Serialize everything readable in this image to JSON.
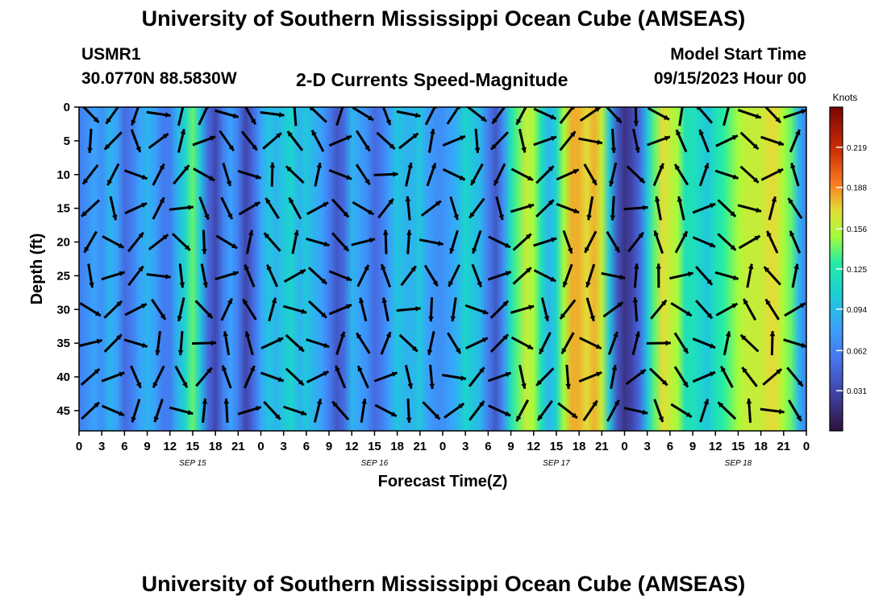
{
  "page": {
    "title": "University of Southern Mississippi Ocean Cube (AMSEAS)",
    "title_repeat": "University of Southern Mississippi Ocean Cube (AMSEAS)",
    "station": "USMR1",
    "coords": "30.0770N  88.5830W",
    "plot_title": "2-D Currents Speed-Magnitude",
    "model_label": "Model Start Time",
    "model_time": "09/15/2023 Hour 00"
  },
  "chart_data": {
    "type": "heatmap",
    "xlabel": "Forecast Time(Z)",
    "ylabel": "Depth (ft)",
    "x_ticks": [
      "0",
      "3",
      "6",
      "9",
      "12",
      "15",
      "18",
      "21",
      "0",
      "3",
      "6",
      "9",
      "12",
      "15",
      "18",
      "21",
      "0",
      "3",
      "6",
      "9",
      "12",
      "15",
      "18",
      "21",
      "0",
      "3",
      "6",
      "9",
      "12",
      "15",
      "18",
      "21",
      "0"
    ],
    "date_labels": [
      {
        "label": "SEP 15",
        "hour": 15
      },
      {
        "label": "SEP 16",
        "hour": 39
      },
      {
        "label": "SEP 17",
        "hour": 63
      },
      {
        "label": "SEP 18",
        "hour": 87
      }
    ],
    "y_ticks": [
      0,
      5,
      10,
      15,
      20,
      25,
      30,
      35,
      40,
      45
    ],
    "x_range_hours": [
      0,
      96
    ],
    "y_range_ft": [
      0,
      48
    ],
    "colorbar": {
      "unit": "Knots",
      "range": [
        0,
        0.25
      ],
      "ticks": [
        "0.031",
        "0.062",
        "0.094",
        "0.125",
        "0.156",
        "0.188",
        "0.219"
      ],
      "tick_values": [
        0.031,
        0.062,
        0.094,
        0.125,
        0.156,
        0.188,
        0.219
      ]
    },
    "speed_profile_hours": [
      0,
      1,
      2,
      3,
      4,
      5,
      6,
      7,
      8,
      9,
      10,
      11,
      12,
      13,
      14,
      15,
      16,
      17,
      18,
      19,
      20,
      21,
      22,
      23,
      24,
      25,
      26,
      27,
      28,
      29,
      30,
      31,
      32,
      33,
      34,
      35,
      36,
      37,
      38,
      39,
      40,
      41,
      42,
      43,
      44,
      45,
      46,
      47,
      48,
      49,
      50,
      51,
      52,
      53,
      54,
      55,
      56,
      57,
      58,
      59,
      60,
      61,
      62,
      63,
      64,
      65,
      66,
      67,
      68,
      69,
      70,
      71,
      72,
      73,
      74,
      75,
      76,
      77,
      78,
      79,
      80,
      81,
      82,
      83,
      84,
      85,
      86,
      87,
      88,
      89,
      90,
      91,
      92,
      93,
      94,
      95,
      96
    ],
    "speed_profile_knots": [
      0.06,
      0.07,
      0.08,
      0.07,
      0.09,
      0.08,
      0.05,
      0.06,
      0.08,
      0.09,
      0.08,
      0.06,
      0.06,
      0.09,
      0.11,
      0.14,
      0.1,
      0.05,
      0.03,
      0.06,
      0.08,
      0.06,
      0.03,
      0.05,
      0.08,
      0.1,
      0.09,
      0.1,
      0.11,
      0.09,
      0.1,
      0.09,
      0.08,
      0.06,
      0.04,
      0.05,
      0.09,
      0.08,
      0.07,
      0.05,
      0.06,
      0.08,
      0.1,
      0.09,
      0.09,
      0.1,
      0.08,
      0.07,
      0.07,
      0.08,
      0.09,
      0.11,
      0.1,
      0.09,
      0.06,
      0.04,
      0.07,
      0.12,
      0.14,
      0.16,
      0.15,
      0.12,
      0.09,
      0.11,
      0.15,
      0.18,
      0.18,
      0.17,
      0.18,
      0.16,
      0.1,
      0.04,
      0.02,
      0.03,
      0.05,
      0.1,
      0.14,
      0.17,
      0.16,
      0.15,
      0.12,
      0.12,
      0.11,
      0.1,
      0.12,
      0.13,
      0.14,
      0.15,
      0.16,
      0.16,
      0.16,
      0.17,
      0.17,
      0.15,
      0.14,
      0.09,
      0.06
    ]
  }
}
